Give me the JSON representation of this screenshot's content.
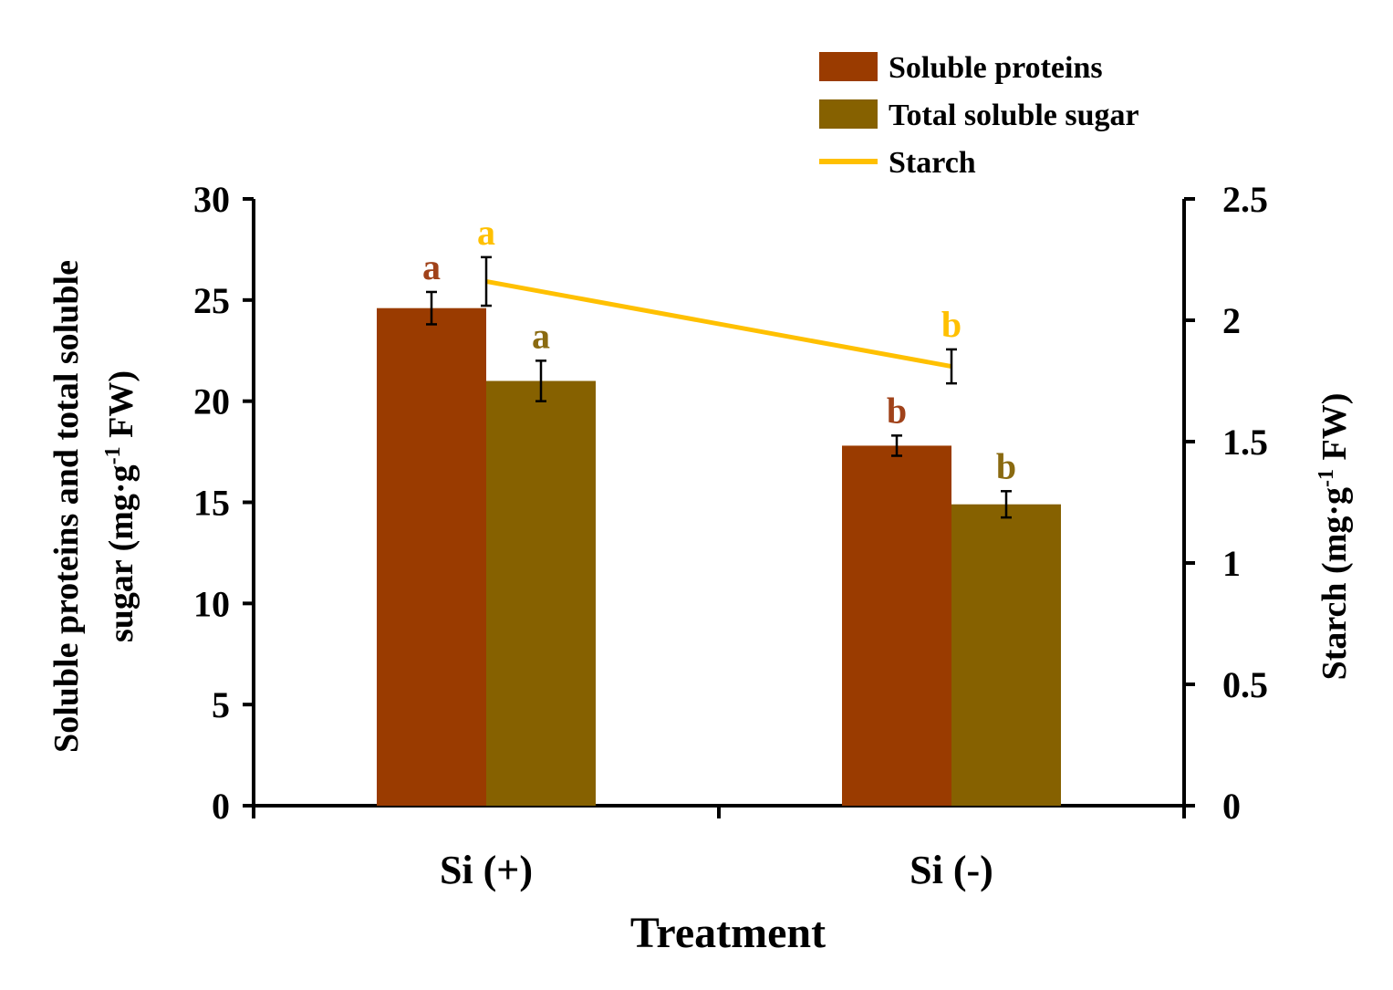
{
  "chart_data": {
    "type": "bar",
    "categories": [
      "Si (+)",
      "Si (-)"
    ],
    "xlabel": "Treatment",
    "ylabel_left_line1": "Soluble proteins and total soluble",
    "ylabel_left_line2_pre": "sugar (mg·g",
    "ylabel_left_line2_sup": "-1",
    "ylabel_left_line2_post": " FW)",
    "ylabel_right_pre": "Starch (mg·g",
    "ylabel_right_sup": "-1",
    "ylabel_right_post": " FW)",
    "ylim_left": [
      0,
      30
    ],
    "yticks_left": [
      "0",
      "5",
      "10",
      "15",
      "20",
      "25",
      "30"
    ],
    "ylim_right": [
      0,
      2.5
    ],
    "yticks_right": [
      "0",
      "0.5",
      "1",
      "1.5",
      "2",
      "2.5"
    ],
    "series": [
      {
        "name": "Soluble proteins",
        "kind": "bar",
        "axis": "left",
        "color": "#9a3b00",
        "label_color": "#a0421a",
        "values": [
          24.6,
          17.8
        ],
        "errors": [
          0.8,
          0.5
        ],
        "letters": [
          "a",
          "b"
        ]
      },
      {
        "name": "Total soluble sugar",
        "kind": "bar",
        "axis": "left",
        "color": "#866100",
        "label_color": "#8a6a10",
        "values": [
          21.0,
          14.9
        ],
        "errors": [
          1.0,
          0.65
        ],
        "letters": [
          "a",
          "b"
        ]
      },
      {
        "name": "Starch",
        "kind": "line",
        "axis": "right",
        "color": "#ffc000",
        "label_color": "#ffc000",
        "values": [
          2.16,
          1.81
        ],
        "errors": [
          0.1,
          0.07
        ],
        "letters": [
          "a",
          "b"
        ]
      }
    ],
    "legend_position": "top-right"
  }
}
